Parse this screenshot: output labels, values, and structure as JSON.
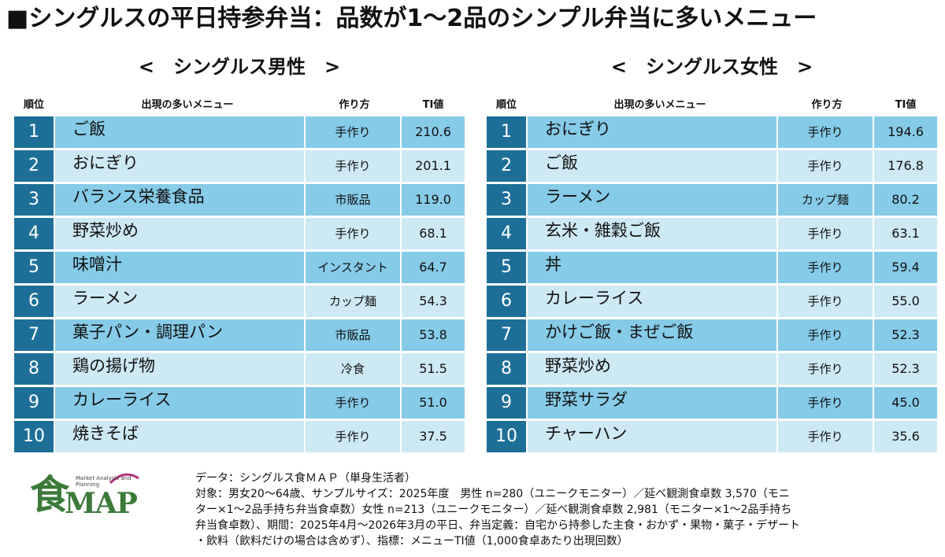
{
  "title": "■シングルスの平日持参弁当：品数が1～2品のシンプル弁当に多いメニュー",
  "headers": {
    "rank": "順位",
    "menu": "出現の多いメニュー",
    "method": "作り方",
    "ti": "TI値"
  },
  "colors": {
    "rank_bg": "#1d6f98",
    "row_dark": "#86cbe7",
    "row_light": "#cde9f4",
    "logo_green": "#3c7a3a"
  },
  "male": {
    "heading": "<　シングルス男性　>",
    "rows": [
      {
        "rank": "1",
        "menu": "ご飯",
        "method": "手作り",
        "ti": "210.6"
      },
      {
        "rank": "2",
        "menu": "おにぎり",
        "method": "手作り",
        "ti": "201.1"
      },
      {
        "rank": "3",
        "menu": "バランス栄養食品",
        "method": "市販品",
        "ti": "119.0"
      },
      {
        "rank": "4",
        "menu": "野菜炒め",
        "method": "手作り",
        "ti": "68.1"
      },
      {
        "rank": "5",
        "menu": "味噌汁",
        "method": "インスタント",
        "ti": "64.7"
      },
      {
        "rank": "6",
        "menu": "ラーメン",
        "method": "カップ麺",
        "ti": "54.3"
      },
      {
        "rank": "7",
        "menu": "菓子パン・調理パン",
        "method": "市販品",
        "ti": "53.8"
      },
      {
        "rank": "8",
        "menu": "鶏の揚げ物",
        "method": "冷食",
        "ti": "51.5"
      },
      {
        "rank": "9",
        "menu": "カレーライス",
        "method": "手作り",
        "ti": "51.0"
      },
      {
        "rank": "10",
        "menu": "焼きそば",
        "method": "手作り",
        "ti": "37.5"
      }
    ]
  },
  "female": {
    "heading": "<　シングルス女性　>",
    "rows": [
      {
        "rank": "1",
        "menu": "おにぎり",
        "method": "手作り",
        "ti": "194.6"
      },
      {
        "rank": "2",
        "menu": "ご飯",
        "method": "手作り",
        "ti": "176.8"
      },
      {
        "rank": "3",
        "menu": "ラーメン",
        "method": "カップ麺",
        "ti": "80.2"
      },
      {
        "rank": "4",
        "menu": "玄米・雑穀ご飯",
        "method": "手作り",
        "ti": "63.1"
      },
      {
        "rank": "5",
        "menu": "丼",
        "method": "手作り",
        "ti": "59.4"
      },
      {
        "rank": "6",
        "menu": "カレーライス",
        "method": "手作り",
        "ti": "55.0"
      },
      {
        "rank": "7",
        "menu": "かけご飯・まぜご飯",
        "method": "手作り",
        "ti": "52.3"
      },
      {
        "rank": "8",
        "menu": "野菜炒め",
        "method": "手作り",
        "ti": "52.3"
      },
      {
        "rank": "9",
        "menu": "野菜サラダ",
        "method": "手作り",
        "ti": "45.0"
      },
      {
        "rank": "10",
        "menu": "チャーハン",
        "method": "手作り",
        "ti": "35.6"
      }
    ]
  },
  "logo": {
    "kanji": "食",
    "map": "MAP",
    "tagline": "Market Analysis and Planning"
  },
  "notes": [
    "データ：シングルス食ＭＡＰ（単身生活者）",
    "対象：男女20～64歳、サンプルサイズ：2025年度　男性 n=280（ユニークモニター）／延べ観測食卓数 3,570（モニ",
    "ター×1～2品手持ち弁当食卓数）女性 n=213（ユニークモニター）／延べ観測食卓数 2,981（モニター×1～2品手持ち",
    "弁当食卓数）、期間：2025年4月～2026年3月の平日、弁当定義：自宅から持参した主食・おかず・果物・菓子・デザート",
    "・飲料（飲料だけの場合は含めず）、指標：メニューTI値（1,000食卓あたり出現回数）"
  ]
}
